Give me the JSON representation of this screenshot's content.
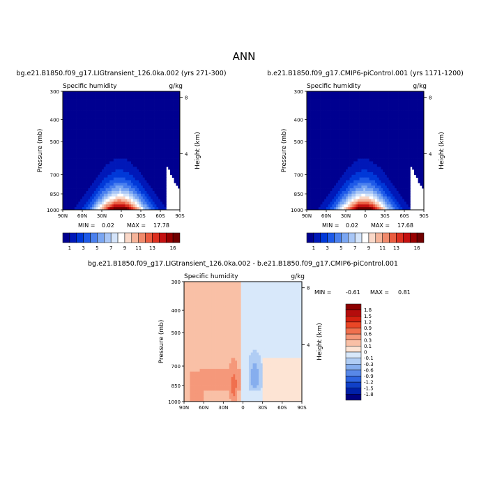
{
  "figure": {
    "title": "ANN"
  },
  "chart_data": [
    {
      "type": "heatmap",
      "id": "panel-a",
      "title": "bg.e21.B1850.f09_g17.LIGtransient_126.0ka.002 (yrs 271-300)",
      "variable": "Specific humidity",
      "units": "g/kg",
      "ylabel": "Pressure (mb)",
      "ylabel_right": "Height (km)",
      "x_ticks": [
        "90N",
        "60N",
        "30N",
        "0",
        "30S",
        "60S",
        "90S"
      ],
      "x_range": [
        90,
        -90
      ],
      "y_ticks": [
        300,
        400,
        500,
        700,
        850,
        1000
      ],
      "y_range": [
        300,
        1000
      ],
      "height_ticks": [
        8,
        4
      ],
      "min_label": "MIN =",
      "min": "0.02",
      "max_label": "MAX =",
      "max": "17.78",
      "colorbar": {
        "orientation": "horizontal",
        "labels": [
          "1",
          "3",
          "5",
          "7",
          "9",
          "11",
          "13",
          "16"
        ],
        "colors": [
          "#000090",
          "#0018b8",
          "#0038d8",
          "#1e5ae8",
          "#4a80ee",
          "#7aa6f2",
          "#a8c6f6",
          "#d4e4fa",
          "#ffffff",
          "#fad8c8",
          "#f5b49a",
          "#f08a6c",
          "#ea5c40",
          "#dc3020",
          "#c41010",
          "#980000",
          "#700000"
        ]
      }
    },
    {
      "type": "heatmap",
      "id": "panel-b",
      "title": "b.e21.B1850.f09_g17.CMIP6-piControl.001 (yrs 1171-1200)",
      "variable": "Specific humidity",
      "units": "g/kg",
      "ylabel": "Pressure (mb)",
      "ylabel_right": "Height (km)",
      "x_ticks": [
        "90N",
        "60N",
        "30N",
        "0",
        "30S",
        "60S",
        "90S"
      ],
      "x_range": [
        90,
        -90
      ],
      "y_ticks": [
        300,
        400,
        500,
        700,
        850,
        1000
      ],
      "y_range": [
        300,
        1000
      ],
      "height_ticks": [
        8,
        4
      ],
      "min_label": "MIN =",
      "min": "0.02",
      "max_label": "MAX =",
      "max": "17.68",
      "colorbar": {
        "orientation": "horizontal",
        "labels": [
          "1",
          "3",
          "5",
          "7",
          "9",
          "11",
          "13",
          "16"
        ],
        "colors": [
          "#000090",
          "#0018b8",
          "#0038d8",
          "#1e5ae8",
          "#4a80ee",
          "#7aa6f2",
          "#a8c6f6",
          "#d4e4fa",
          "#ffffff",
          "#fad8c8",
          "#f5b49a",
          "#f08a6c",
          "#ea5c40",
          "#dc3020",
          "#c41010",
          "#980000",
          "#700000"
        ]
      }
    },
    {
      "type": "heatmap",
      "id": "panel-diff",
      "title": "bg.e21.B1850.f09_g17.LIGtransient_126.0ka.002 - b.e21.B1850.f09_g17.CMIP6-piControl.001",
      "variable": "Specific humidity",
      "units": "g/kg",
      "ylabel": "Pressure (mb)",
      "ylabel_right": "Height (km)",
      "x_ticks": [
        "90N",
        "60N",
        "30N",
        "0",
        "30S",
        "60S",
        "90S"
      ],
      "x_range": [
        90,
        -90
      ],
      "y_ticks": [
        300,
        400,
        500,
        700,
        850,
        1000
      ],
      "y_range": [
        300,
        1000
      ],
      "height_ticks": [
        8,
        4
      ],
      "min_label": "MIN =",
      "min": "-0.61",
      "max_label": "MAX =",
      "max": "0.81",
      "colorbar": {
        "orientation": "vertical",
        "labels": [
          "1.8",
          "1.5",
          "1.2",
          "0.9",
          "0.6",
          "0.3",
          "0.1",
          "0",
          "-0.1",
          "-0.3",
          "-0.6",
          "-0.9",
          "-1.2",
          "-1.5",
          "-1.8"
        ],
        "colors": [
          "#8c0000",
          "#b40c0c",
          "#d42010",
          "#ea4626",
          "#f0704e",
          "#f5987a",
          "#f9c0a6",
          "#fde4d4",
          "#d8e8fa",
          "#b0cdf4",
          "#86aeee",
          "#5888e8",
          "#2e64e0",
          "#1040c8",
          "#0020a8",
          "#000080"
        ]
      }
    }
  ]
}
